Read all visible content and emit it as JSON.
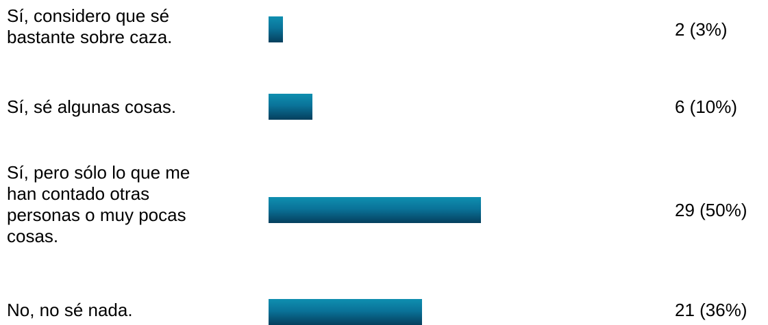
{
  "chart_data": {
    "type": "bar",
    "orientation": "horizontal",
    "categories": [
      "Sí, considero que sé\nbastante sobre caza.",
      "Sí, sé algunas cosas.",
      "Sí, pero sólo lo que me\nhan contado otras\npersonas o muy pocas\ncosas.",
      "No, no sé nada."
    ],
    "values": [
      2,
      6,
      29,
      21
    ],
    "value_labels": [
      "2 (3%)",
      "6 (10%)",
      "29 (50%)",
      "21 (36%)"
    ],
    "percentages": [
      3,
      10,
      50,
      36
    ],
    "title": "",
    "xlabel": "",
    "ylabel": "",
    "grid": false,
    "bar_color": "#0a7399"
  }
}
